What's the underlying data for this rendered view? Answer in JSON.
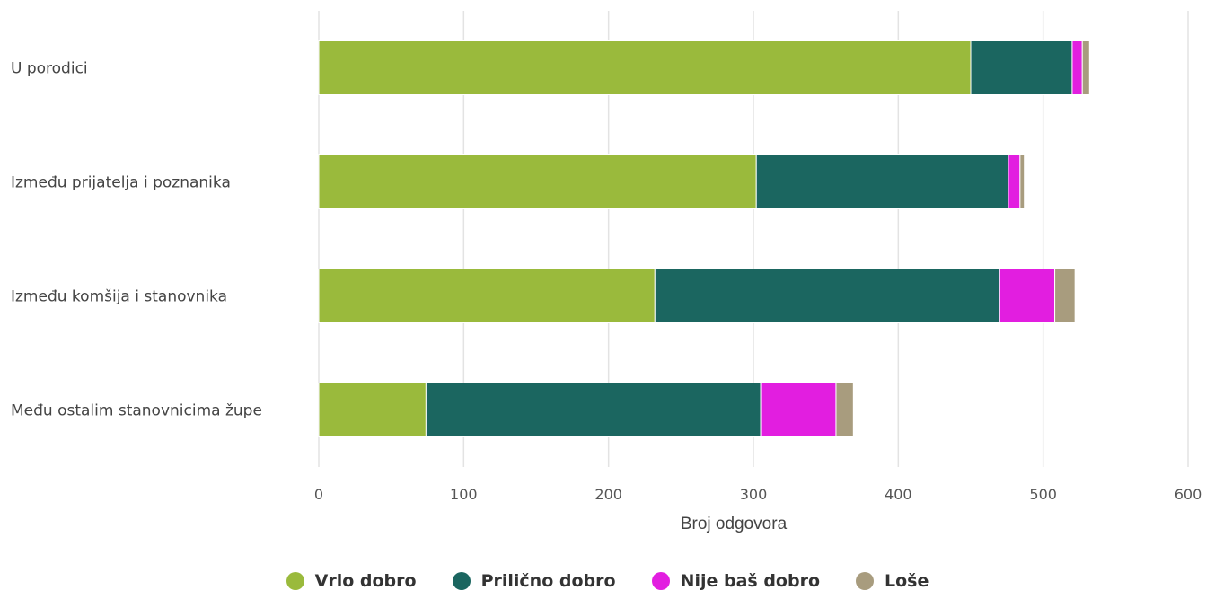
{
  "chart_data": {
    "type": "bar",
    "orientation": "horizontal",
    "stacked": true,
    "categories": [
      "U porodici",
      "Između prijatelja i poznanika",
      "Između komšija i stanovnika",
      "Među ostalim stanovnicima župe"
    ],
    "series": [
      {
        "name": "Vrlo dobro",
        "color": "#9aba3c",
        "values": [
          450,
          302,
          232,
          74
        ]
      },
      {
        "name": "Prilično dobro",
        "color": "#1b6660",
        "values": [
          70,
          174,
          238,
          231
        ]
      },
      {
        "name": "Nije baš dobro",
        "color": "#e21ee0",
        "values": [
          7,
          8,
          38,
          52
        ]
      },
      {
        "name": "Loše",
        "color": "#a89c7e",
        "values": [
          5,
          3,
          14,
          12
        ]
      }
    ],
    "xlabel": "Broj odgovora",
    "ylabel": "",
    "xlim": [
      0,
      600
    ],
    "xticks": [
      0,
      100,
      200,
      300,
      400,
      500,
      600
    ],
    "grid": "vertical",
    "legend_position": "bottom-center"
  }
}
